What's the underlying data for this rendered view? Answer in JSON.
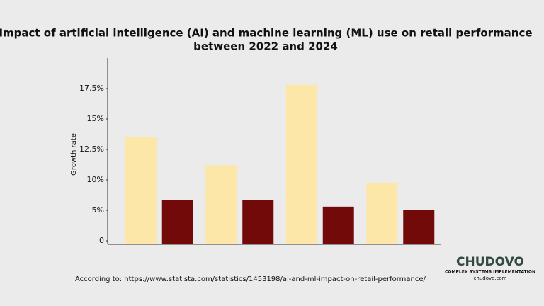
{
  "chart_data": {
    "type": "bar",
    "title": "Impact of artificial intelligence (AI) and machine learning (ML) use on retail performance",
    "subtitle": "between 2022 and 2024",
    "y_label": "Growth rate",
    "categories": [
      null,
      null,
      null,
      null
    ],
    "series": [
      {
        "color": "#fce6a8",
        "values": [
          13.5,
          11.2,
          17.8,
          9.5
        ]
      },
      {
        "color": "#730a0a",
        "values": [
          6.7,
          6.7,
          5.6,
          5.0
        ]
      }
    ],
    "ylim": [
      0,
      20
    ],
    "yticks": [
      0,
      {
        "value": 5,
        "label": "5%"
      },
      {
        "value": 10,
        "label": "10%"
      },
      {
        "value": 12.5,
        "label": "12.5%"
      },
      {
        "value": 15,
        "label": "15%"
      },
      {
        "value": 17.5,
        "label": "17.5%"
      }
    ],
    "source": "According to: https://www.statista.com/statistics/1453198/ai-and-ml-impact-on-retail-performance/",
    "brand": {
      "name": "CHUDOVO",
      "tagline": "COMPLEX SYSTEMS IMPLEMENTATION",
      "site": "chudovo.com"
    }
  }
}
